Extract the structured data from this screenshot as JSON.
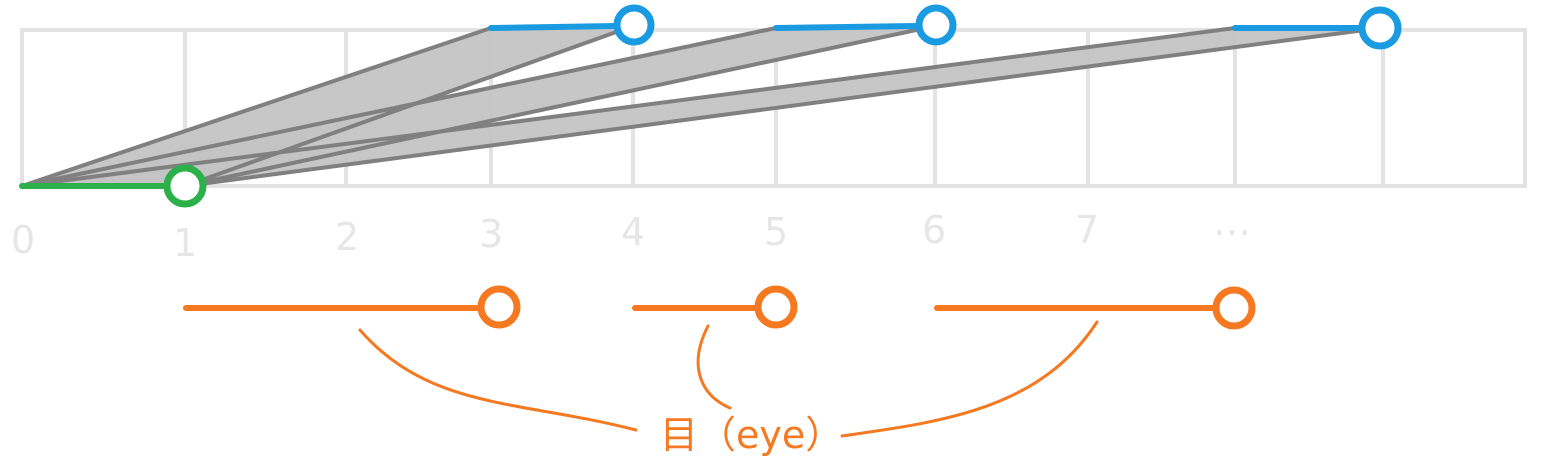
{
  "colors": {
    "grid": "#e3e3e3",
    "tick_text": "#e6e6e6",
    "green": "#2bb04a",
    "blue": "#1a9ae0",
    "gray_line": "#808080",
    "gray_fill": "#c4c4c4",
    "orange": "#f47920"
  },
  "axis": {
    "ticks": [
      "0",
      "1",
      "2",
      "3",
      "4",
      "5",
      "6",
      "7",
      "…"
    ]
  },
  "annotation": {
    "label": "目（eye）"
  },
  "segments": {
    "base": {
      "from": 0,
      "to": 1,
      "color_key": "green"
    },
    "targets": [
      {
        "from": 3,
        "to": 4
      },
      {
        "from": 5,
        "to": 6
      },
      {
        "from": 8,
        "to": 9
      }
    ],
    "eyes": [
      {
        "length_units": 2
      },
      {
        "length_units": 1
      },
      {
        "length_units": 2
      }
    ]
  }
}
